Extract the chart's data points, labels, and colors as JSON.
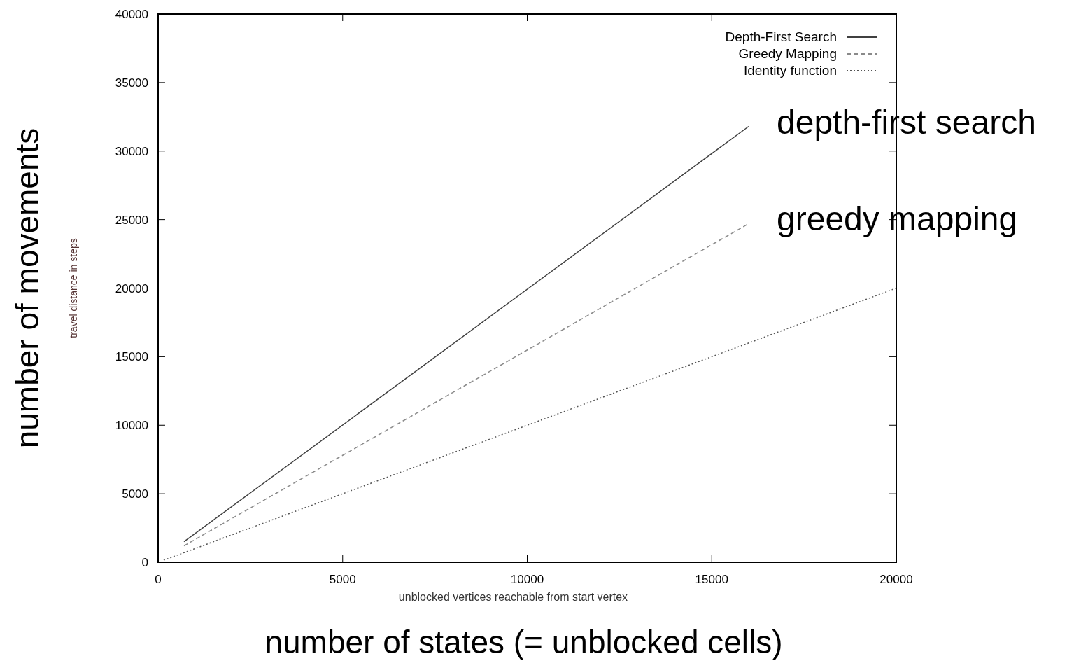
{
  "chart_data": {
    "type": "line",
    "xlabel": "unblocked vertices reachable from start vertex",
    "ylabel": "travel distance in steps",
    "xlim": [
      0,
      20000
    ],
    "ylim": [
      0,
      40000
    ],
    "xticks": [
      0,
      5000,
      10000,
      15000,
      20000
    ],
    "yticks": [
      0,
      5000,
      10000,
      15000,
      20000,
      25000,
      30000,
      35000,
      40000
    ],
    "legend": "top right",
    "grid": false,
    "series": [
      {
        "name": "Depth-First Search",
        "color": "#404040",
        "line_style": "solid",
        "x": [
          700,
          16000
        ],
        "values": [
          1500,
          31800
        ]
      },
      {
        "name": "Greedy Mapping",
        "color": "#8a8a8a",
        "line_style": "dashed",
        "x": [
          700,
          16000
        ],
        "values": [
          1200,
          24700
        ]
      },
      {
        "name": "Identity function",
        "color": "#555555",
        "line_style": "dotted",
        "x": [
          150,
          20000
        ],
        "values": [
          150,
          20000
        ]
      }
    ],
    "annotations": [
      {
        "text": "depth-first search",
        "x": 16000,
        "y": 31800
      },
      {
        "text": "greedy mapping",
        "x": 16000,
        "y": 24700
      },
      "number of movements",
      "number of  states (= unblocked cells)"
    ]
  }
}
